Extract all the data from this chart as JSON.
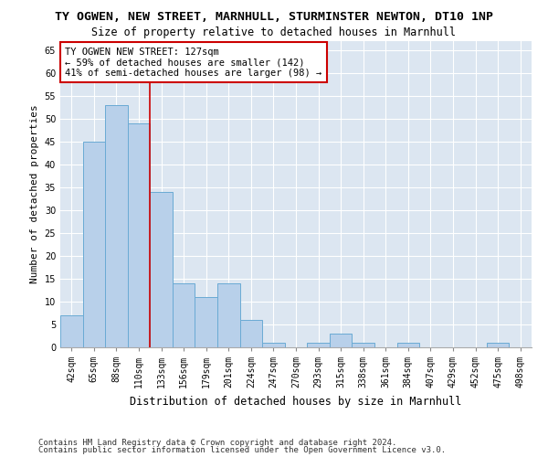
{
  "title1": "TY OGWEN, NEW STREET, MARNHULL, STURMINSTER NEWTON, DT10 1NP",
  "title2": "Size of property relative to detached houses in Marnhull",
  "xlabel": "Distribution of detached houses by size in Marnhull",
  "ylabel": "Number of detached properties",
  "categories": [
    "42sqm",
    "65sqm",
    "88sqm",
    "110sqm",
    "133sqm",
    "156sqm",
    "179sqm",
    "201sqm",
    "224sqm",
    "247sqm",
    "270sqm",
    "293sqm",
    "315sqm",
    "338sqm",
    "361sqm",
    "384sqm",
    "407sqm",
    "429sqm",
    "452sqm",
    "475sqm",
    "498sqm"
  ],
  "values": [
    7,
    45,
    53,
    49,
    34,
    14,
    11,
    14,
    6,
    1,
    0,
    1,
    3,
    1,
    0,
    1,
    0,
    0,
    0,
    1,
    0
  ],
  "bar_color": "#b8d0ea",
  "bar_edge_color": "#6aaad4",
  "vline_x_index": 3.5,
  "annotation_line1": "TY OGWEN NEW STREET: 127sqm",
  "annotation_line2": "← 59% of detached houses are smaller (142)",
  "annotation_line3": "41% of semi-detached houses are larger (98) →",
  "annotation_box_color": "#ffffff",
  "annotation_box_edge": "#cc0000",
  "vline_color": "#cc0000",
  "ylim": [
    0,
    67
  ],
  "yticks": [
    0,
    5,
    10,
    15,
    20,
    25,
    30,
    35,
    40,
    45,
    50,
    55,
    60,
    65
  ],
  "background_color": "#dce6f1",
  "footer1": "Contains HM Land Registry data © Crown copyright and database right 2024.",
  "footer2": "Contains public sector information licensed under the Open Government Licence v3.0.",
  "title1_fontsize": 9.5,
  "title2_fontsize": 8.5,
  "xlabel_fontsize": 8.5,
  "ylabel_fontsize": 8,
  "tick_fontsize": 7,
  "annotation_fontsize": 7.5,
  "footer_fontsize": 6.5
}
